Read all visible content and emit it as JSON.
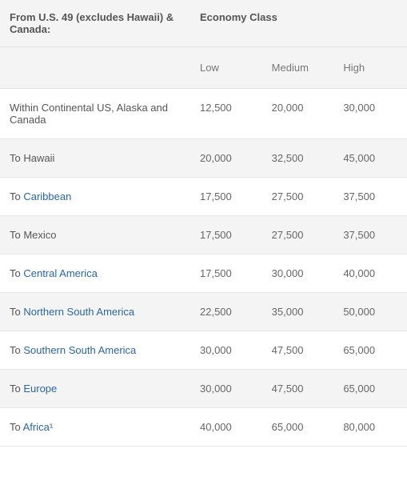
{
  "colors": {
    "link": "#2a66a1",
    "text": "#666666",
    "header_text": "#555555",
    "row_alt_bg": "#f4f4f4",
    "row_bg": "#ffffff",
    "border": "#e2e2e2"
  },
  "header": {
    "origin": "From U.S. 49 (excludes Hawaii) & Canada:",
    "class": "Economy Class"
  },
  "subheader": {
    "low": "Low",
    "medium": "Medium",
    "high": "High"
  },
  "rows": [
    {
      "prefix": "",
      "dest": "Within Continental US, Alaska and Canada",
      "suffix": "",
      "link": false,
      "low": "12,500",
      "medium": "20,000",
      "high": "30,000"
    },
    {
      "prefix": "To ",
      "dest": "Hawaii",
      "suffix": "",
      "link": false,
      "low": "20,000",
      "medium": "32,500",
      "high": "45,000"
    },
    {
      "prefix": "To ",
      "dest": "Caribbean",
      "suffix": "",
      "link": true,
      "low": "17,500",
      "medium": "27,500",
      "high": "37,500"
    },
    {
      "prefix": "To ",
      "dest": "Mexico",
      "suffix": "",
      "link": false,
      "low": "17,500",
      "medium": "27,500",
      "high": "37,500"
    },
    {
      "prefix": "To ",
      "dest": "Central America",
      "suffix": "",
      "link": true,
      "low": "17,500",
      "medium": "30,000",
      "high": "40,000"
    },
    {
      "prefix": "To ",
      "dest": "Northern South America",
      "suffix": "",
      "link": true,
      "low": "22,500",
      "medium": "35,000",
      "high": "50,000"
    },
    {
      "prefix": "To ",
      "dest": "Southern South America",
      "suffix": "",
      "link": true,
      "low": "30,000",
      "medium": "47,500",
      "high": "65,000"
    },
    {
      "prefix": "To ",
      "dest": "Europe",
      "suffix": "",
      "link": true,
      "low": "30,000",
      "medium": "47,500",
      "high": "65,000"
    },
    {
      "prefix": "To ",
      "dest": "Africa",
      "suffix": "¹",
      "link": true,
      "low": "40,000",
      "medium": "65,000",
      "high": "80,000"
    }
  ]
}
